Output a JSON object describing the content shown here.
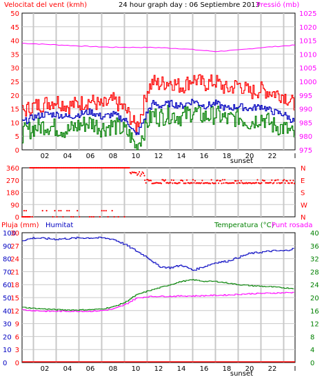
{
  "colors": {
    "wind_red": "#ff0000",
    "pressure_magenta": "#ff00ff",
    "humidity_blue": "#0000c0",
    "temperature_green": "#008000",
    "grid_gray": "#c8c8c8",
    "frame": "#000000"
  },
  "chart_data": [
    {
      "type": "line",
      "title": "24 hour graph day : 06 Septiembre 2013",
      "left_axis_label": "Velocitat del vent (kmh)",
      "right_axis_label": "Pressió (mb)",
      "left_ylim": [
        0,
        50
      ],
      "right_ylim": [
        975,
        1025
      ],
      "left_ticks": [
        "0",
        "5",
        "10",
        "15",
        "20",
        "25",
        "30",
        "35",
        "40",
        "45",
        "50"
      ],
      "right_ticks": [
        "975",
        "980",
        "985",
        "990",
        "995",
        "1000",
        "1005",
        "1010",
        "1015",
        "1020",
        "1025"
      ],
      "x_ticks": [
        "02",
        "04",
        "06",
        "08",
        "10",
        "12",
        "14",
        "16",
        "18",
        "20",
        "22"
      ],
      "x_annotation": "sunset",
      "series": [
        {
          "name": "Pressió",
          "axis": "right",
          "hours": [
            0,
            2,
            4,
            6,
            8,
            10,
            12,
            14,
            16,
            17,
            19,
            21,
            24
          ],
          "values": [
            1014,
            1013.6,
            1013.2,
            1012.8,
            1012.5,
            1012.5,
            1012.4,
            1012,
            1011.3,
            1011,
            1011.5,
            1012.4,
            1013.3
          ]
        },
        {
          "hours": [
            0,
            1,
            2,
            3,
            4,
            5,
            6,
            7,
            8,
            9,
            9.5,
            10,
            10.5,
            11,
            11.5,
            12,
            13,
            14,
            15,
            16,
            17,
            18,
            19,
            20,
            21,
            22,
            23,
            24
          ],
          "values": [
            14,
            16,
            17,
            18,
            16,
            17,
            18,
            16,
            18,
            15,
            12,
            8,
            14,
            22,
            25,
            24,
            25,
            23,
            26,
            24,
            25,
            22,
            24,
            21,
            22,
            21,
            20,
            16
          ]
        },
        {
          "hours": [
            0,
            1,
            2,
            3,
            4,
            5,
            6,
            7,
            8,
            9,
            9.5,
            10,
            10.5,
            11,
            11.5,
            12,
            13,
            14,
            15,
            16,
            17,
            18,
            19,
            20,
            21,
            22,
            23,
            24
          ],
          "values": [
            10,
            12,
            13,
            13,
            12,
            13,
            14,
            12,
            13,
            11,
            9,
            5,
            9,
            14,
            17,
            16,
            17,
            16,
            18,
            16,
            17,
            15,
            16,
            15,
            16,
            14,
            13,
            10
          ]
        },
        {
          "hours": [
            0,
            1,
            2,
            3,
            4,
            5,
            6,
            7,
            8,
            9,
            9.5,
            10,
            10.5,
            11,
            11.5,
            12,
            13,
            14,
            15,
            16,
            17,
            18,
            19,
            20,
            21,
            22,
            23,
            24
          ],
          "values": [
            6,
            8,
            9,
            8,
            7,
            9,
            10,
            8,
            9,
            7,
            5,
            1,
            5,
            10,
            13,
            12,
            13,
            12,
            14,
            12,
            13,
            11,
            12,
            10,
            12,
            9,
            8,
            5
          ]
        }
      ]
    },
    {
      "type": "scatter",
      "title": "",
      "left_ylim": [
        0,
        360
      ],
      "left_ticks": [
        "0",
        "90",
        "180",
        "270",
        "360"
      ],
      "right_ticks": [
        "N",
        "W",
        "S",
        "E",
        "N"
      ],
      "x_ticks": [],
      "series": [
        {
          "segments": [
            {
              "from": 0,
              "to": 0.7,
              "value": 0
            },
            {
              "from": 0.7,
              "to": 9.5,
              "value": 360
            },
            {
              "from": 9.5,
              "to": 10.8,
              "value": 315
            },
            {
              "from": 10.8,
              "to": 24,
              "value": 248
            }
          ],
          "scattered": [
            {
              "from": 0,
              "to": 9,
              "values": [
                0,
                45,
                0,
                0,
                45,
                0,
                0,
                45
              ]
            }
          ]
        }
      ]
    },
    {
      "type": "line",
      "title": "",
      "left_axis_label": "Pluja (mm)",
      "left_axis_label2": "Humitat",
      "right_axis_label": "Temperatura (°C)",
      "right_axis_label2": "Punt rosada",
      "left_ylim": [
        0,
        100
      ],
      "left_ticks": [
        "0",
        "10",
        "20",
        "30",
        "40",
        "50",
        "60",
        "70",
        "80",
        "90",
        "100"
      ],
      "left_ticks2": [
        "0",
        "3",
        "6",
        "9",
        "12",
        "15",
        "18",
        "21",
        "24",
        "27",
        "30"
      ],
      "right_ylim": [
        0,
        40
      ],
      "right_ticks": [
        "0",
        "4",
        "8",
        "12",
        "16",
        "20",
        "24",
        "28",
        "32",
        "36",
        "40"
      ],
      "x_ticks": [
        "02",
        "04",
        "06",
        "08",
        "10",
        "12",
        "14",
        "16",
        "18",
        "20",
        "22"
      ],
      "x_annotation": "sunset",
      "series": [
        {
          "name": "Pluja",
          "axis": "left",
          "hours": [
            0,
            24
          ],
          "values": [
            0,
            0
          ]
        },
        {
          "name": "Humitat",
          "axis": "left",
          "hours": [
            0,
            1,
            3,
            5,
            7,
            8,
            9,
            10,
            11,
            12,
            13,
            14,
            15,
            16,
            17,
            18,
            19,
            20,
            21,
            22,
            23,
            24
          ],
          "values": [
            94,
            96,
            95,
            96,
            96,
            95,
            91,
            86,
            81,
            74,
            73,
            75,
            71,
            74,
            77,
            78,
            81,
            84,
            85,
            86,
            86,
            88
          ]
        },
        {
          "name": "Temperatura",
          "axis": "right",
          "hours": [
            0,
            1,
            2,
            3,
            4,
            5,
            6,
            7,
            8,
            9,
            10,
            11,
            12,
            13,
            14,
            15,
            16,
            17,
            18,
            19,
            20,
            21,
            22,
            23,
            24
          ],
          "values": [
            17,
            16.7,
            16.5,
            16.3,
            16.2,
            16.2,
            16.3,
            16.5,
            17.2,
            18.5,
            20.8,
            22,
            23,
            24,
            25,
            25.5,
            25,
            25,
            24.5,
            24,
            23.7,
            23.5,
            23.3,
            23,
            22.8
          ]
        },
        {
          "name": "Punt rosada",
          "axis": "right",
          "hours": [
            0,
            1,
            2,
            3,
            4,
            5,
            6,
            7,
            8,
            9,
            10,
            11,
            12,
            13,
            14,
            15,
            16,
            17,
            18,
            19,
            20,
            21,
            22,
            23,
            24
          ],
          "values": [
            16.2,
            16,
            15.8,
            15.8,
            15.8,
            15.8,
            15.8,
            16,
            16.5,
            17.8,
            19.8,
            20.3,
            20.4,
            20.4,
            20.5,
            20.5,
            20.6,
            20.7,
            20.8,
            21,
            21.2,
            21.3,
            21.4,
            21.5,
            21.6
          ]
        }
      ]
    }
  ]
}
